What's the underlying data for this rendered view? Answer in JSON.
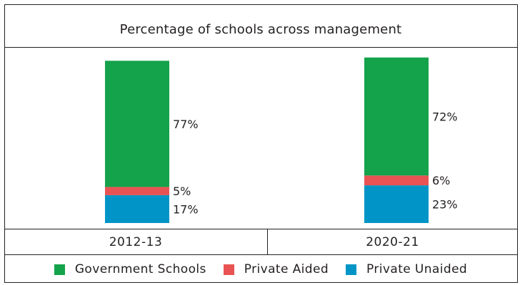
{
  "colors": {
    "government": "#14a34a",
    "private_aided": "#e95353",
    "private_unaided": "#0095c6",
    "border": "#231f20"
  },
  "chart_data": {
    "type": "bar",
    "stacked": true,
    "title": "Percentage of  schools across management",
    "categories": [
      "2012-13",
      "2020-21"
    ],
    "series": [
      {
        "name": "Private Unaided",
        "values": [
          17,
          23
        ],
        "labels": [
          "17%",
          "23%"
        ],
        "color": "#0095c6"
      },
      {
        "name": "Private Aided",
        "values": [
          5,
          6
        ],
        "labels": [
          "5%",
          "6%"
        ],
        "color": "#e95353"
      },
      {
        "name": "Government Schools",
        "values": [
          77,
          72
        ],
        "labels": [
          "77%",
          "72%"
        ],
        "color": "#14a34a"
      }
    ],
    "legend": [
      "Government Schools",
      "Private Aided",
      "Private Unaided"
    ],
    "legend_position": "bottom",
    "ylim": [
      0,
      100
    ],
    "grid": false
  }
}
